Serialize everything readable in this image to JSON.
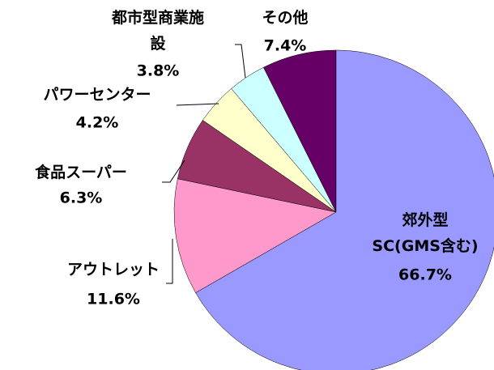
{
  "chart_data": {
    "type": "pie",
    "categories": [
      "郊外型\nSC(GMS含む)",
      "アウトレット",
      "食品スーパー",
      "パワーセンター",
      "都市型商業施\n設",
      "その他"
    ],
    "values": [
      66.7,
      11.6,
      6.3,
      4.2,
      3.8,
      7.4
    ],
    "value_labels": [
      "66.7%",
      "11.6%",
      "6.3%",
      "4.2%",
      "3.8%",
      "7.4%"
    ],
    "colors": [
      "#9999ff",
      "#ff99cc",
      "#993366",
      "#ffffcc",
      "#ccffff",
      "#660066"
    ]
  }
}
